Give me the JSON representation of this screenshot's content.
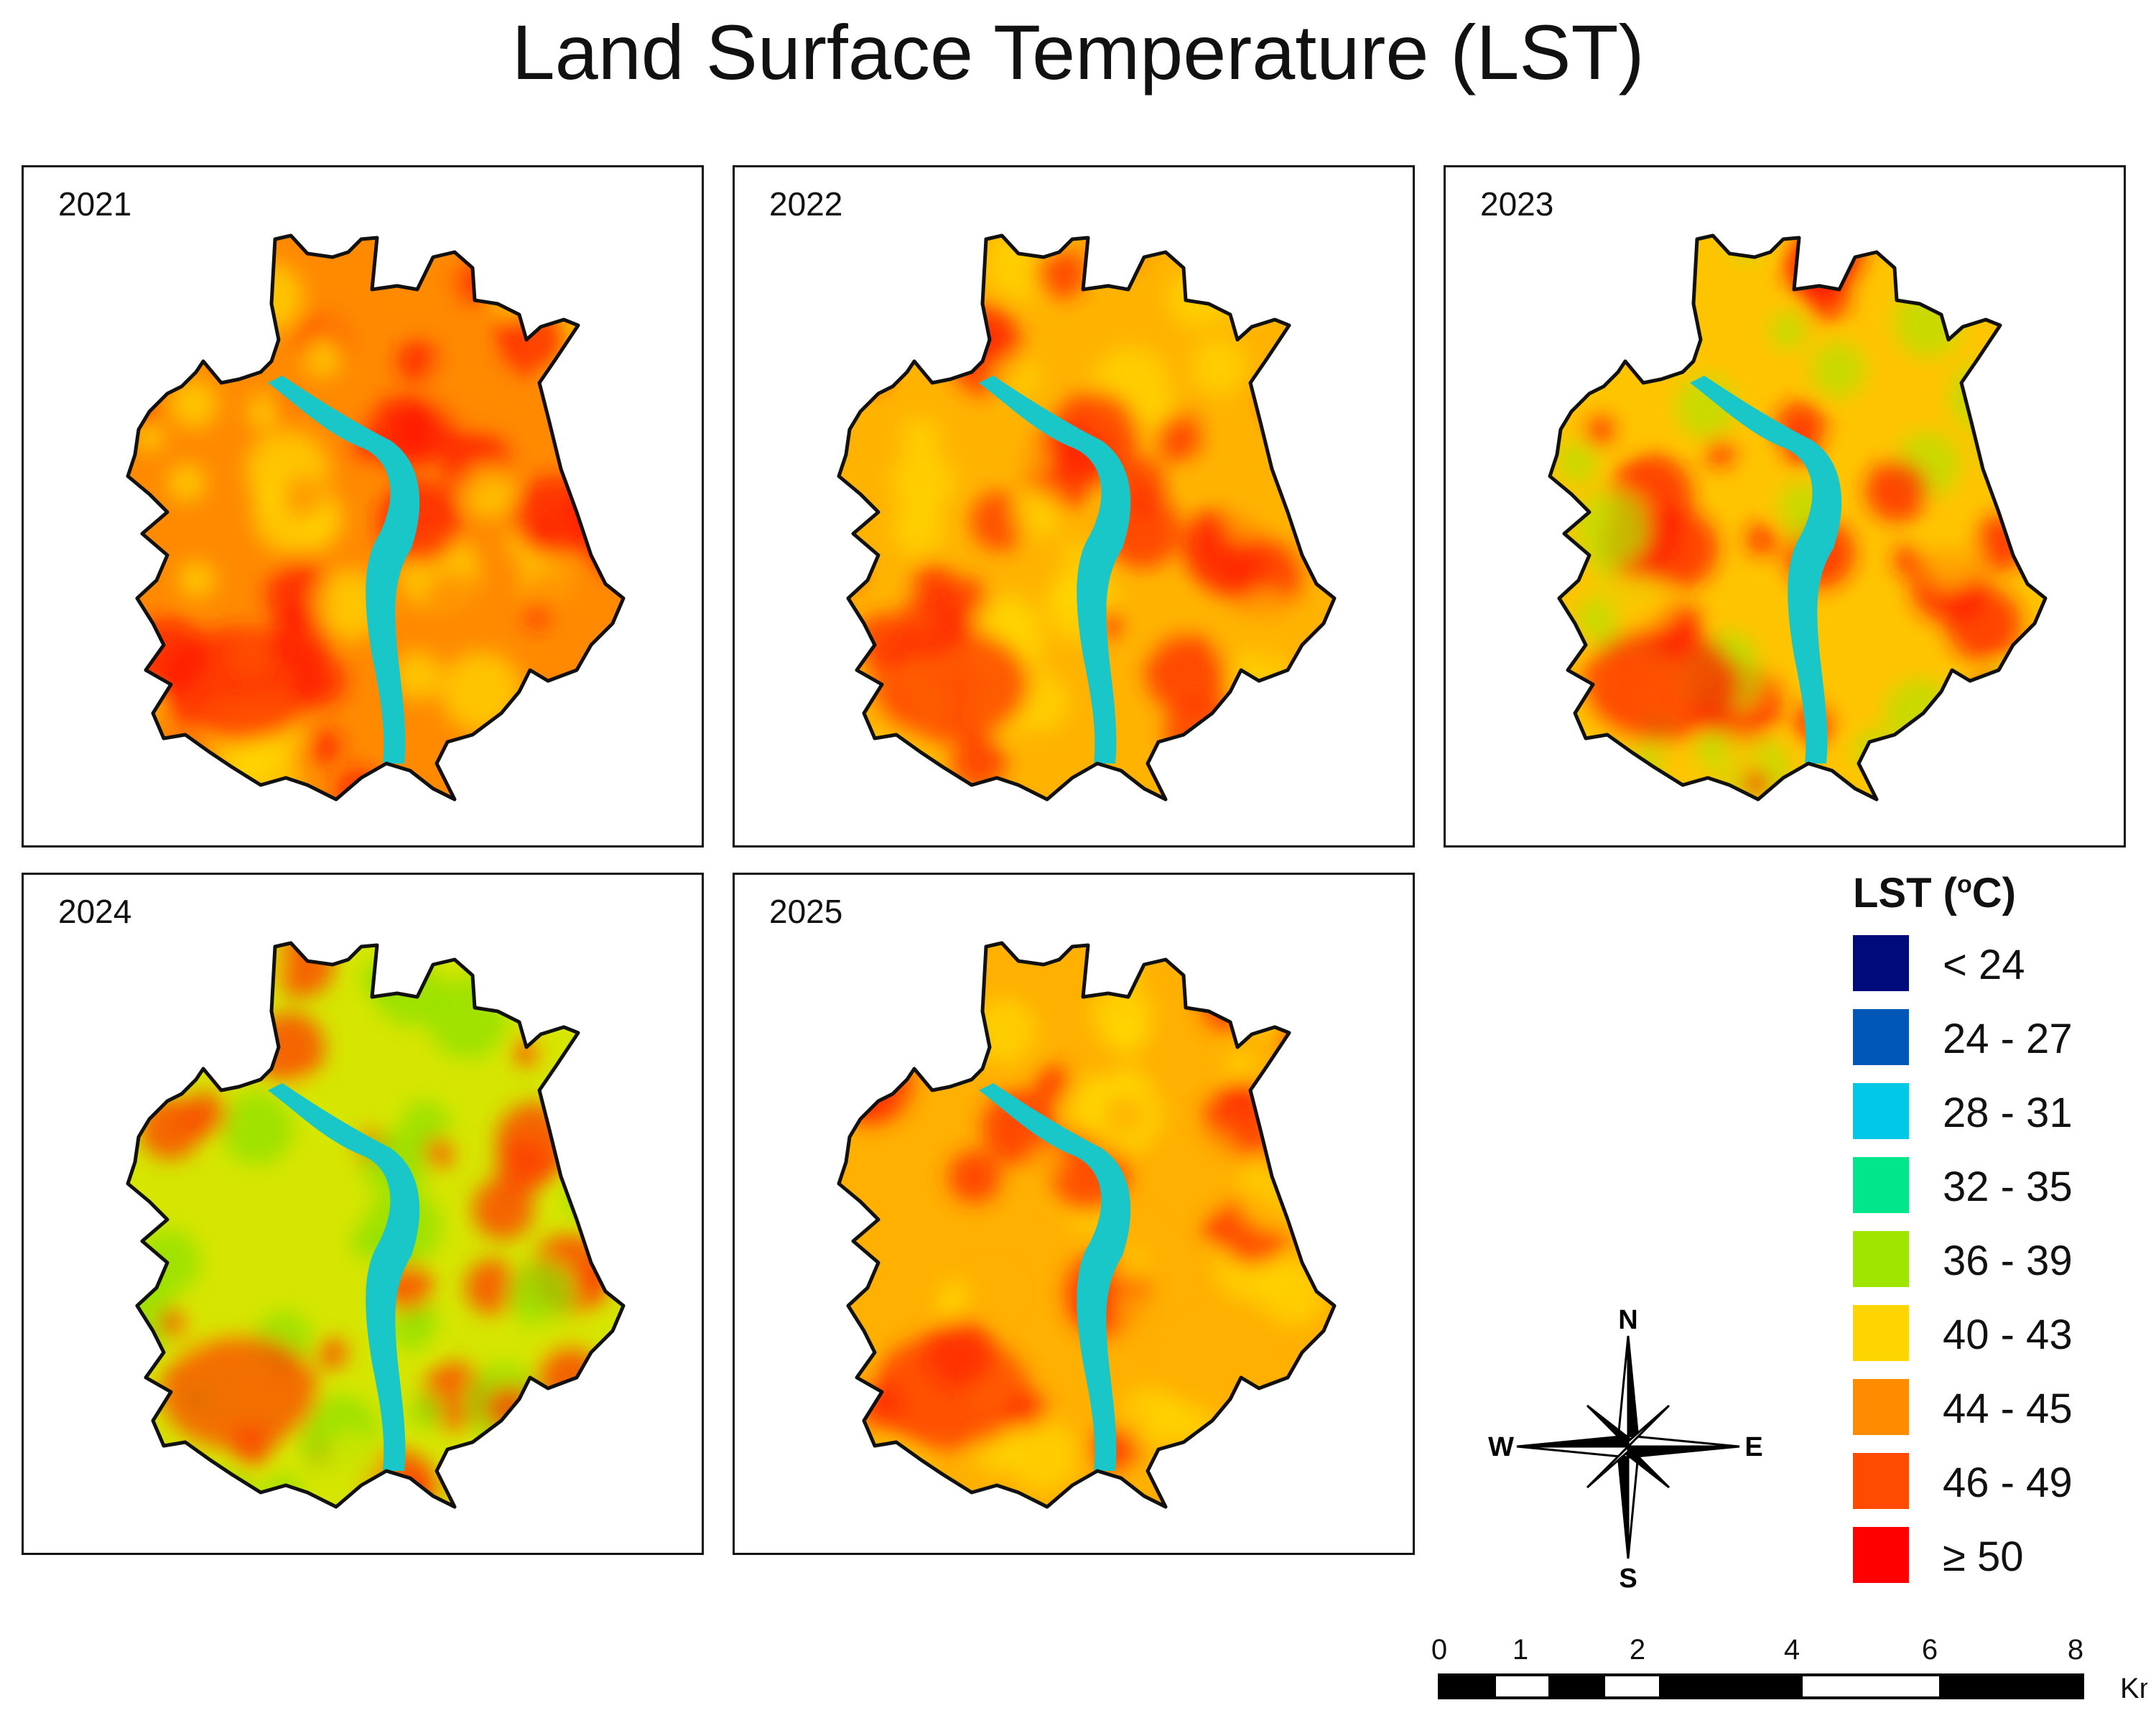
{
  "title": "Land Surface Temperature (LST)",
  "panels": [
    {
      "year": "2021",
      "dominant": "#FF8A00",
      "secondary": "#FFD500",
      "hot": "#FF1A00"
    },
    {
      "year": "2022",
      "dominant": "#FFB300",
      "secondary": "#FFD500",
      "hot": "#FF2A00"
    },
    {
      "year": "2023",
      "dominant": "#FFC400",
      "secondary": "#B8E000",
      "hot": "#FF1A00"
    },
    {
      "year": "2024",
      "dominant": "#D6E600",
      "secondary": "#8FE000",
      "hot": "#FF3A00"
    },
    {
      "year": "2025",
      "dominant": "#FFB000",
      "secondary": "#FFD500",
      "hot": "#FF2A00"
    }
  ],
  "legend": {
    "title": "LST (",
    "title_sup": "o",
    "title_end": "C)",
    "items": [
      {
        "label": "< 24",
        "color": "#000A7A"
      },
      {
        "label": "24 - 27",
        "color": "#0057B8"
      },
      {
        "label": "28 - 31",
        "color": "#00C8E6"
      },
      {
        "label": "32 - 35",
        "color": "#00E68A"
      },
      {
        "label": "36 - 39",
        "color": "#9EE600"
      },
      {
        "label": "40 - 43",
        "color": "#FFD500"
      },
      {
        "label": "44 - 45",
        "color": "#FF8C00"
      },
      {
        "label": "46 - 49",
        "color": "#FF4A00"
      },
      {
        "label": "≥ 50",
        "color": "#FF0000"
      }
    ]
  },
  "compass": {
    "n": "N",
    "s": "S",
    "e": "E",
    "w": "W"
  },
  "scale": {
    "ticks": [
      "0",
      "1",
      "2",
      "4",
      "6",
      "8"
    ],
    "unit": "Km"
  },
  "river_color": "#19C6C8"
}
